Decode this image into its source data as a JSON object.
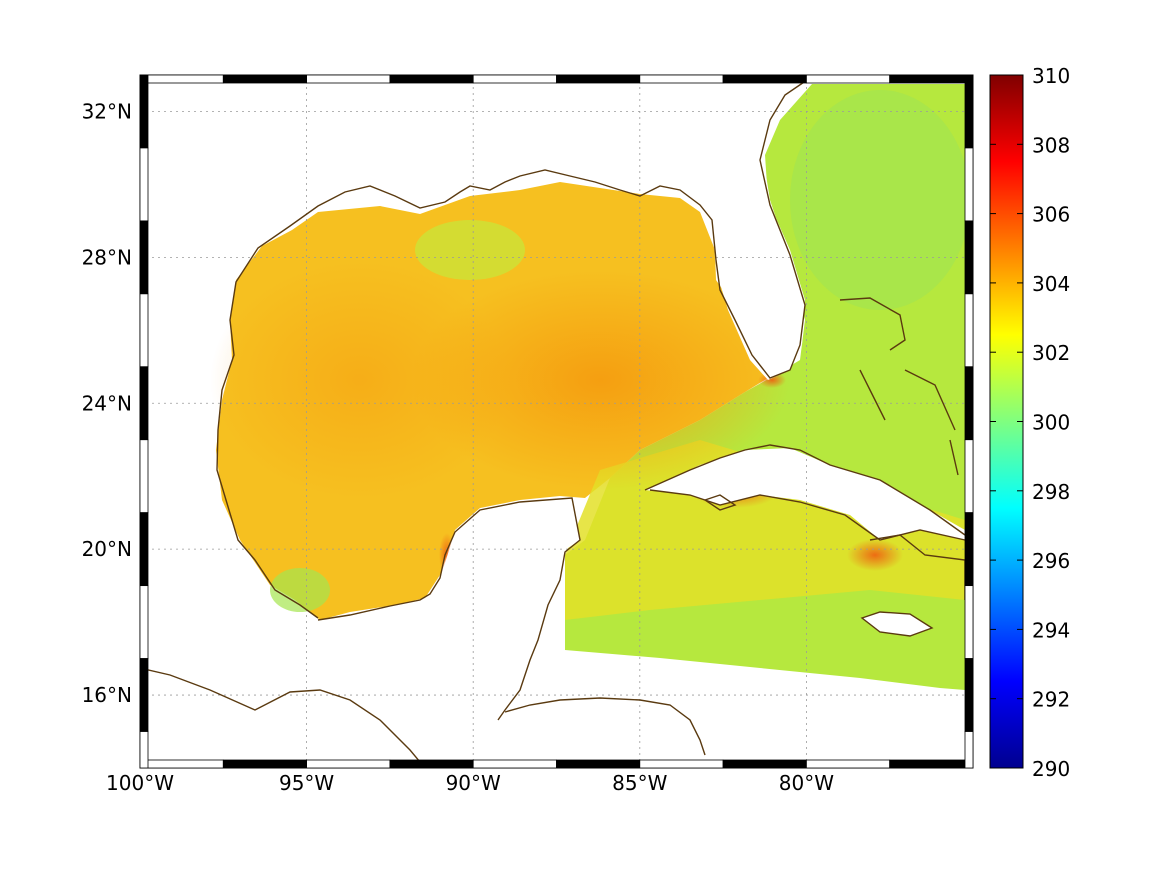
{
  "map": {
    "extent": {
      "lon_min": -100,
      "lon_max": -75,
      "lat_min": 14,
      "lat_max": 33
    },
    "x_ticks": [
      {
        "lon": -100,
        "label": "100°W"
      },
      {
        "lon": -95,
        "label": "95°W"
      },
      {
        "lon": -90,
        "label": "90°W"
      },
      {
        "lon": -85,
        "label": "85°W"
      },
      {
        "lon": -80,
        "label": "80°W"
      }
    ],
    "y_ticks": [
      {
        "lat": 32,
        "label": "32°N"
      },
      {
        "lat": 28,
        "label": "28°N"
      },
      {
        "lat": 24,
        "label": "24°N"
      },
      {
        "lat": 20,
        "label": "20°N"
      },
      {
        "lat": 16,
        "label": "16°N"
      }
    ],
    "grid": true,
    "coastline_color": "#5a3a10",
    "field_colors": {
      "warm_core": "#f7a012",
      "gulf": "#f6c31a",
      "shelf": "#d9e81a",
      "atlantic": "#a8ea46",
      "caribbean": "#cfe42c",
      "hotspot": "#f06a10"
    }
  },
  "colorbar": {
    "colormap": "jet",
    "min": 290,
    "max": 310,
    "ticks": [
      "310",
      "308",
      "306",
      "304",
      "302",
      "300",
      "298",
      "296",
      "294",
      "292",
      "290"
    ]
  }
}
